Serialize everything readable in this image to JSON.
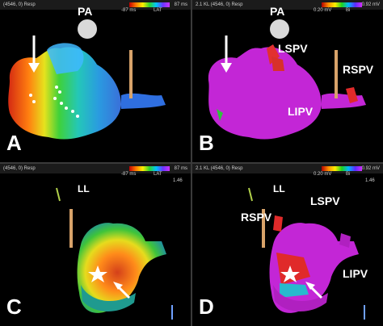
{
  "panels": {
    "A": {
      "letter": "A",
      "header_left": "(4546, 0) Resp",
      "scale_name": "LAT",
      "scale_min": "-87 ms",
      "scale_max": "87 ms",
      "labels": {
        "pa": "PA"
      }
    },
    "B": {
      "letter": "B",
      "header_left": "2.1 KL (4546, 0) Resp",
      "scale_name": "Bi",
      "scale_min": "0.20 mV",
      "scale_max": "0.92 mV",
      "labels": {
        "pa": "PA",
        "lspv": "LSPV",
        "rspv": "RSPV",
        "lipv": "LIPV"
      }
    },
    "C": {
      "letter": "C",
      "header_left": "(4546, 0) Resp",
      "scale_name": "LAT",
      "scale_min": "-87 ms",
      "scale_max": "87 ms",
      "labels": {
        "ll": "LL"
      },
      "side_val": "1.46"
    },
    "D": {
      "letter": "D",
      "header_left": "2.1 KL (4546, 0) Resp",
      "scale_name": "Bi",
      "scale_min": "0.20 mV",
      "scale_max": "0.92 mV",
      "labels": {
        "ll": "LL",
        "lspv": "LSPV",
        "rspv": "RSPV",
        "lipv": "LIPV"
      },
      "side_val": "1.46"
    }
  }
}
